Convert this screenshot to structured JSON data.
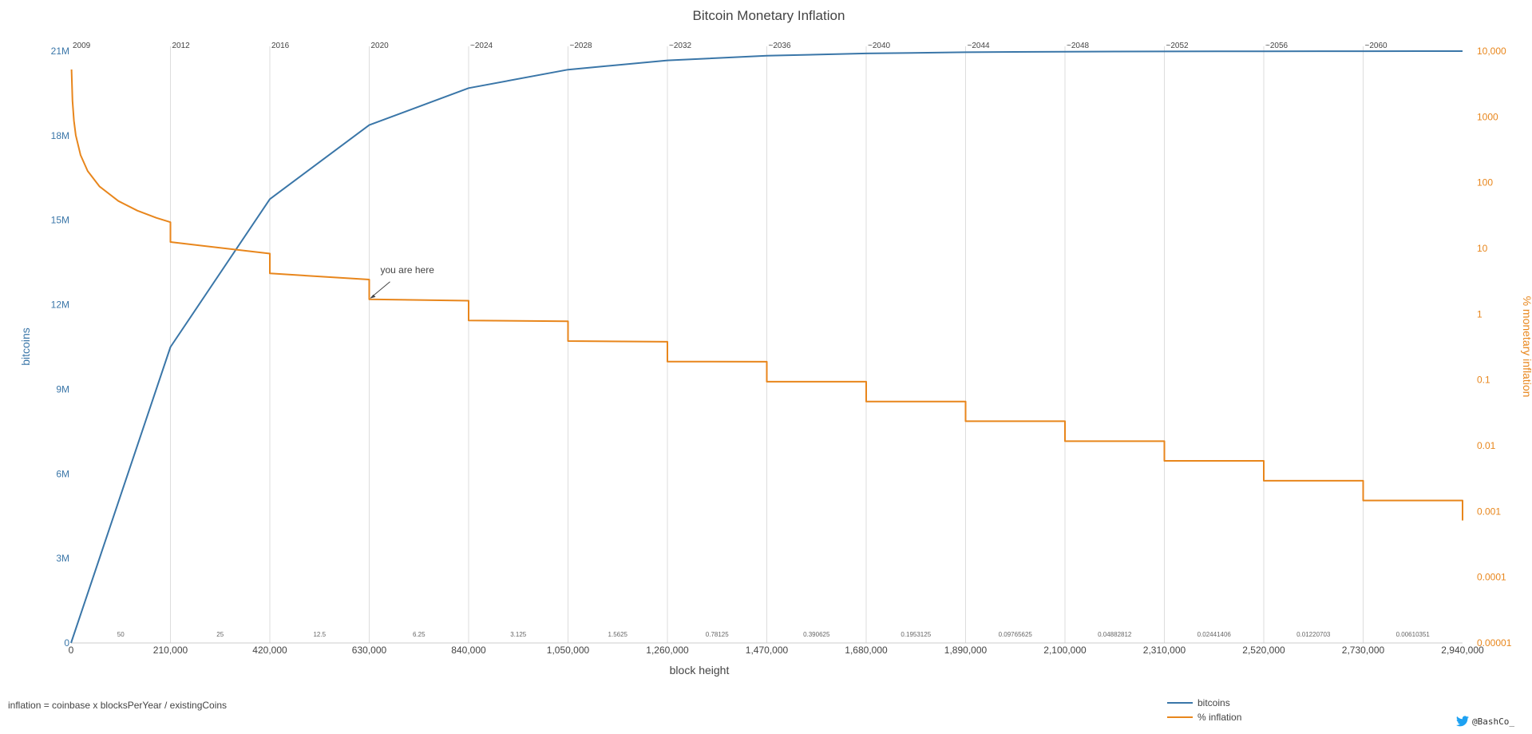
{
  "chart_data": {
    "type": "line",
    "title": "Bitcoin Monetary Inflation",
    "xlabel": "block height",
    "ylabel_left": "bitcoins",
    "ylabel_right": "% monetary inflation",
    "xlim": [
      0,
      2940000
    ],
    "ylim_left": [
      0,
      21000000
    ],
    "ylim_right": [
      1e-05,
      10000
    ],
    "right_axis_scale": "log",
    "grid": "vertical at halvings",
    "x_ticks": [
      {
        "value": 0,
        "label": "0"
      },
      {
        "value": 210000,
        "label": "210,000"
      },
      {
        "value": 420000,
        "label": "420,000"
      },
      {
        "value": 630000,
        "label": "630,000"
      },
      {
        "value": 840000,
        "label": "840,000"
      },
      {
        "value": 1050000,
        "label": "1,050,000"
      },
      {
        "value": 1260000,
        "label": "1,260,000"
      },
      {
        "value": 1470000,
        "label": "1,470,000"
      },
      {
        "value": 1680000,
        "label": "1,680,000"
      },
      {
        "value": 1890000,
        "label": "1,890,000"
      },
      {
        "value": 2100000,
        "label": "2,100,000"
      },
      {
        "value": 2310000,
        "label": "2,310,000"
      },
      {
        "value": 2520000,
        "label": "2,520,000"
      },
      {
        "value": 2730000,
        "label": "2,730,000"
      },
      {
        "value": 2940000,
        "label": "2,940,000"
      }
    ],
    "y_left_ticks": [
      {
        "value": 0,
        "label": "0"
      },
      {
        "value": 3000000,
        "label": "3M"
      },
      {
        "value": 6000000,
        "label": "6M"
      },
      {
        "value": 9000000,
        "label": "9M"
      },
      {
        "value": 12000000,
        "label": "12M"
      },
      {
        "value": 15000000,
        "label": "15M"
      },
      {
        "value": 18000000,
        "label": "18M"
      },
      {
        "value": 21000000,
        "label": "21M"
      }
    ],
    "y_right_ticks": [
      {
        "value": 1e-05,
        "label": "0.00001"
      },
      {
        "value": 0.0001,
        "label": "0.0001"
      },
      {
        "value": 0.001,
        "label": "0.001"
      },
      {
        "value": 0.01,
        "label": "0.01"
      },
      {
        "value": 0.1,
        "label": "0.1"
      },
      {
        "value": 1,
        "label": "1"
      },
      {
        "value": 10,
        "label": "10"
      },
      {
        "value": 100,
        "label": "100"
      },
      {
        "value": 1000,
        "label": "1000"
      },
      {
        "value": 10000,
        "label": "10,000"
      }
    ],
    "year_markers": [
      {
        "value": 0,
        "label": "2009"
      },
      {
        "value": 210000,
        "label": "2012"
      },
      {
        "value": 420000,
        "label": "2016"
      },
      {
        "value": 630000,
        "label": "2020"
      },
      {
        "value": 840000,
        "label": "~2024"
      },
      {
        "value": 1050000,
        "label": "~2028"
      },
      {
        "value": 1260000,
        "label": "~2032"
      },
      {
        "value": 1470000,
        "label": "~2036"
      },
      {
        "value": 1680000,
        "label": "~2040"
      },
      {
        "value": 1890000,
        "label": "~2044"
      },
      {
        "value": 2100000,
        "label": "~2048"
      },
      {
        "value": 2310000,
        "label": "~2052"
      },
      {
        "value": 2520000,
        "label": "~2056"
      },
      {
        "value": 2730000,
        "label": "~2060"
      }
    ],
    "reward_labels": [
      {
        "x": 105000,
        "label": "50"
      },
      {
        "x": 315000,
        "label": "25"
      },
      {
        "x": 525000,
        "label": "12.5"
      },
      {
        "x": 735000,
        "label": "6.25"
      },
      {
        "x": 945000,
        "label": "3.125"
      },
      {
        "x": 1155000,
        "label": "1.5625"
      },
      {
        "x": 1365000,
        "label": "0.78125"
      },
      {
        "x": 1575000,
        "label": "0.390625"
      },
      {
        "x": 1785000,
        "label": "0.1953125"
      },
      {
        "x": 1995000,
        "label": "0.09765625"
      },
      {
        "x": 2205000,
        "label": "0.04882812"
      },
      {
        "x": 2415000,
        "label": "0.02441406"
      },
      {
        "x": 2625000,
        "label": "0.01220703"
      },
      {
        "x": 2835000,
        "label": "0.00610351"
      }
    ],
    "series": [
      {
        "name": "bitcoins",
        "axis": "left",
        "color": "#3a76a8",
        "x": [
          0,
          210000,
          420000,
          630000,
          840000,
          1050000,
          1260000,
          1470000,
          1680000,
          1890000,
          2100000,
          2310000,
          2520000,
          2730000,
          2940000
        ],
        "y": [
          0,
          10500000,
          15750000,
          18375000,
          19687500,
          20343750,
          20671875,
          20835937,
          20917968,
          20958984,
          20979492,
          20989746,
          20994873,
          20997436,
          20998718
        ]
      },
      {
        "name": "% inflation",
        "axis": "right",
        "color": "#e8861c",
        "x": [
          1000,
          3000,
          6000,
          10000,
          20000,
          35000,
          60000,
          100000,
          140000,
          180000,
          209999,
          210000,
          419999,
          420000,
          629999,
          630000,
          839999,
          840000,
          1049999,
          1050000,
          1259999,
          1260000,
          1469999,
          1470000,
          1679999,
          1680000,
          1889999,
          1890000,
          2099999,
          2100000,
          2309999,
          2310000,
          2519999,
          2520000,
          2729999,
          2730000,
          2939999,
          2940000
        ],
        "y": [
          5256,
          1752,
          876,
          525.6,
          262.8,
          150.2,
          87.6,
          52.56,
          37.5,
          29.2,
          25.02,
          12.51,
          8.34,
          4.17,
          3.36,
          1.68,
          1.6,
          0.8,
          0.78,
          0.39,
          0.38,
          0.19,
          0.189,
          0.094,
          0.094,
          0.047,
          0.047,
          0.0235,
          0.0235,
          0.0117,
          0.0117,
          0.00587,
          0.00587,
          0.00293,
          0.00293,
          0.00147,
          0.00147,
          0.00073
        ]
      }
    ],
    "annotation": {
      "text": "you are here",
      "x": 630000,
      "y": 1.68
    },
    "legend": {
      "position": "bottom-right",
      "items": [
        "bitcoins",
        "% inflation"
      ]
    }
  },
  "footnote": "inflation = coinbase x blocksPerYear / existingCoins",
  "credit": "@BashCo_"
}
